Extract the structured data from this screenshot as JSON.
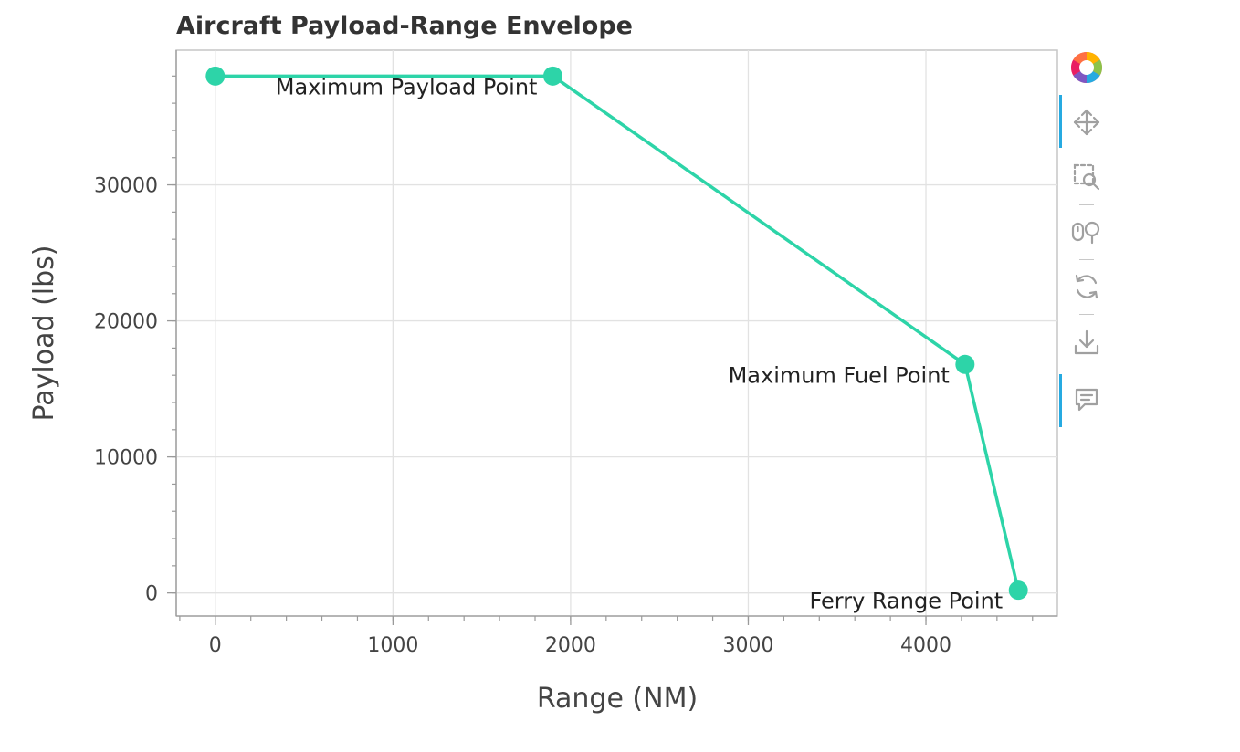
{
  "chart_data": {
    "type": "line",
    "title": "Aircraft Payload-Range Envelope",
    "xlabel": "Range (NM)",
    "ylabel": "Payload (lbs)",
    "xlim": [
      -220,
      4740
    ],
    "ylim": [
      -1700,
      39900
    ],
    "xticks": [
      0,
      1000,
      2000,
      3000,
      4000
    ],
    "yticks": [
      0,
      10000,
      20000,
      30000
    ],
    "grid": true,
    "legend": "none",
    "series": [
      {
        "x": [
          0,
          1900,
          4220,
          4520
        ],
        "y": [
          38000,
          38000,
          16800,
          200
        ],
        "color": "#2dd4a8"
      }
    ],
    "annotations": [
      {
        "text": "Maximum Payload Point",
        "x": 1900,
        "y": 38000
      },
      {
        "text": "Maximum Fuel Point",
        "x": 4220,
        "y": 16800
      },
      {
        "text": "Ferry Range Point",
        "x": 4520,
        "y": 200
      }
    ]
  },
  "toolbar": {
    "items": [
      {
        "name": "bokeh-logo-icon",
        "interactable": true
      },
      {
        "name": "pan-tool-icon",
        "interactable": true
      },
      {
        "name": "box-zoom-tool-icon",
        "interactable": true
      },
      {
        "name": "wheel-zoom-tool-icon",
        "interactable": true
      },
      {
        "name": "reset-tool-icon",
        "interactable": true
      },
      {
        "name": "save-tool-icon",
        "interactable": true
      },
      {
        "name": "hover-tool-icon",
        "interactable": true
      }
    ],
    "accent_color": "#26aae1",
    "icon_color": "#a0a0a0"
  }
}
